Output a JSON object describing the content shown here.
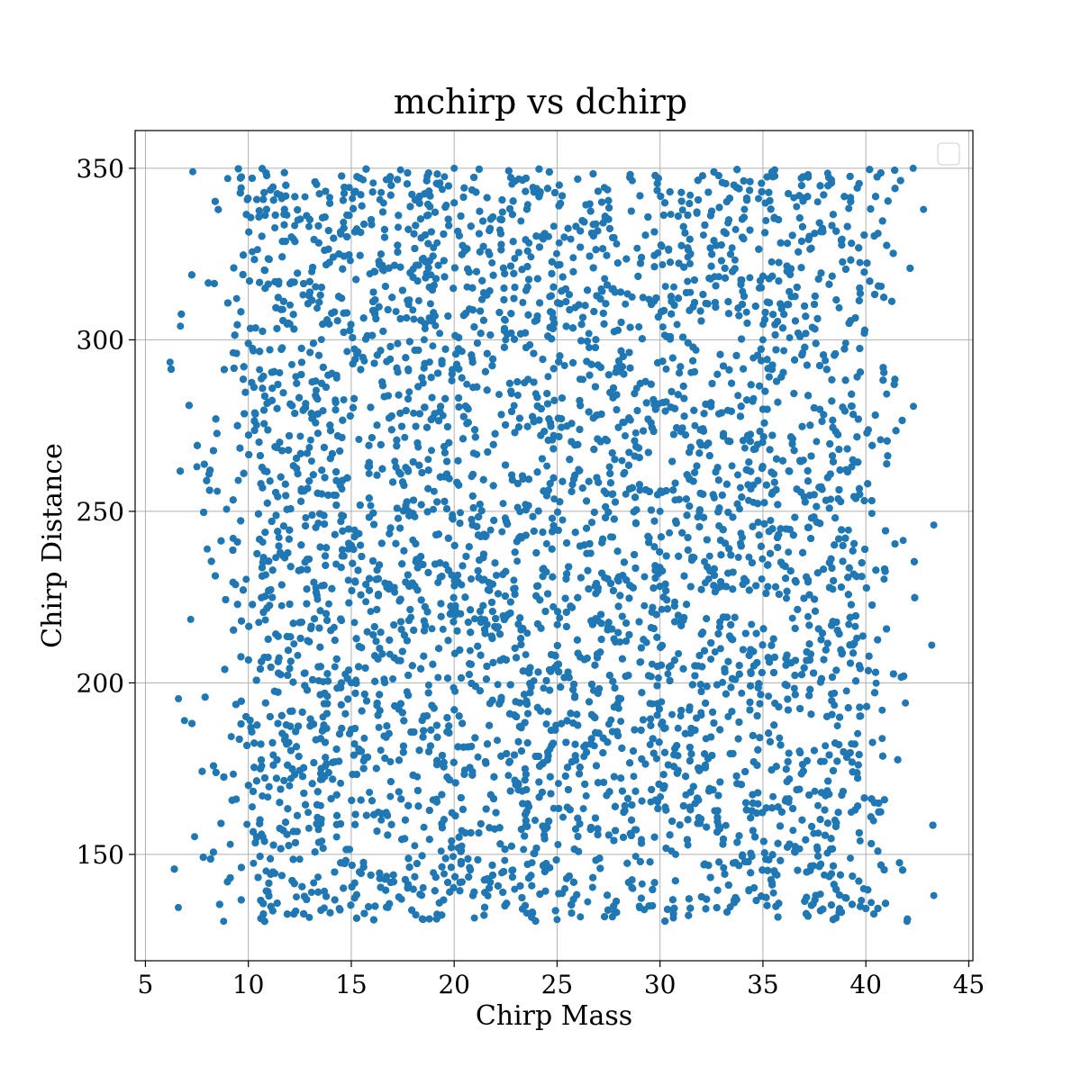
{
  "chart_data": {
    "type": "scatter",
    "title": "mchirp vs dchirp",
    "xlabel": "Chirp Mass",
    "ylabel": "Chirp Distance",
    "xlim": [
      4.5,
      45.2
    ],
    "ylim": [
      119,
      361
    ],
    "xticks": [
      5,
      10,
      15,
      20,
      25,
      30,
      35,
      40,
      45
    ],
    "yticks": [
      150,
      200,
      250,
      300,
      350
    ],
    "grid": true,
    "legend": {
      "placement": "top-right",
      "entries": []
    },
    "point_color": "#1f77b4",
    "series": [
      {
        "distribution": {
          "approx_point_count": 14000,
          "x_range": [
            6.2,
            43.3
          ],
          "y_range": [
            130.5,
            350
          ],
          "dense_core_x_range": [
            10.5,
            39.0
          ],
          "density_profile": "sparse at low and high chirp mass edges, dense uniform core"
        },
        "sample_points": [
          [
            6.2,
            293.5
          ],
          [
            6.6,
            134.5
          ],
          [
            6.7,
            304
          ],
          [
            6.9,
            189
          ],
          [
            7.2,
            218.5
          ],
          [
            7.3,
            349
          ],
          [
            7.5,
            263
          ],
          [
            8.0,
            239
          ],
          [
            8.8,
            130.5
          ],
          [
            9.0,
            347
          ],
          [
            42.0,
            130.5
          ],
          [
            43.3,
            138
          ],
          [
            43.2,
            211
          ],
          [
            43.3,
            246
          ],
          [
            42.8,
            338
          ],
          [
            42.3,
            350
          ],
          [
            20.0,
            350
          ],
          [
            25.0,
            131
          ],
          [
            30.0,
            250
          ],
          [
            15.0,
            200
          ],
          [
            35.0,
            300
          ],
          [
            22.5,
            300
          ],
          [
            27.7,
            242.5
          ],
          [
            12.0,
            170
          ],
          [
            38.5,
            160
          ]
        ]
      }
    ]
  }
}
